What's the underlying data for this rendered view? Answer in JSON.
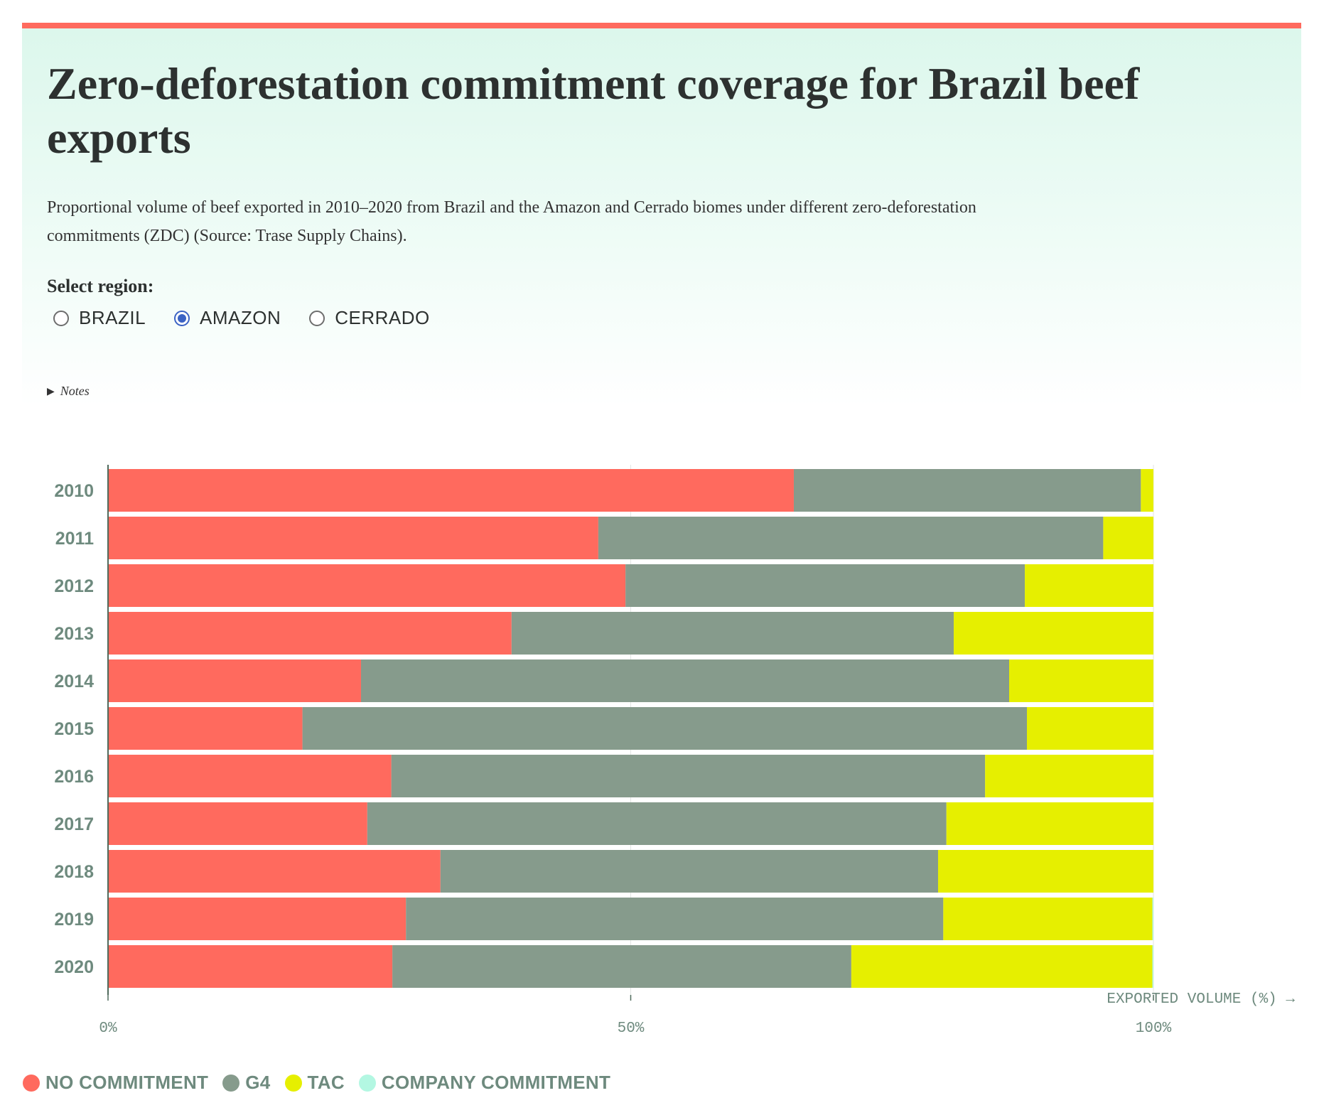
{
  "header": {
    "title": "Zero-deforestation commitment coverage for Brazil beef exports",
    "subtitle": "Proportional volume of beef exported in 2010–2020 from Brazil and the Amazon and Cerrado biomes under different zero-deforestation commitments (ZDC) (Source: Trase Supply Chains).",
    "select_label": "Select region:",
    "regions": [
      {
        "label": "BRAZIL",
        "checked": false
      },
      {
        "label": "AMAZON",
        "checked": true
      },
      {
        "label": "CERRADO",
        "checked": false
      }
    ],
    "notes_label": "Notes"
  },
  "chart_data": {
    "type": "bar",
    "orientation": "horizontal",
    "stacked": true,
    "xlabel": "EXPORTED VOLUME (%) →",
    "xlim": [
      0,
      100
    ],
    "x_ticks": [
      "0%",
      "50%",
      "100%"
    ],
    "grid": true,
    "legend_position": "bottom",
    "categories": [
      "2010",
      "2011",
      "2012",
      "2013",
      "2014",
      "2015",
      "2016",
      "2017",
      "2018",
      "2019",
      "2020"
    ],
    "series": [
      {
        "name": "NO COMMITMENT",
        "color": "#ff6a5e",
        "values": [
          65.6,
          46.9,
          49.5,
          38.6,
          24.2,
          18.6,
          27.1,
          24.8,
          31.8,
          28.5,
          27.2
        ]
      },
      {
        "name": "G4",
        "color": "#869b8c",
        "values": [
          33.2,
          48.3,
          38.2,
          42.3,
          62.0,
          69.3,
          56.8,
          55.4,
          47.6,
          51.4,
          43.9
        ]
      },
      {
        "name": "TAC",
        "color": "#e6ef00",
        "values": [
          1.2,
          4.8,
          12.3,
          19.1,
          13.8,
          12.1,
          16.1,
          19.8,
          20.6,
          20.0,
          28.8
        ]
      },
      {
        "name": "COMPANY COMMITMENT",
        "color": "#b3f7e2",
        "values": [
          0,
          0,
          0,
          0,
          0,
          0,
          0,
          0,
          0,
          0.1,
          0.1
        ]
      }
    ]
  }
}
